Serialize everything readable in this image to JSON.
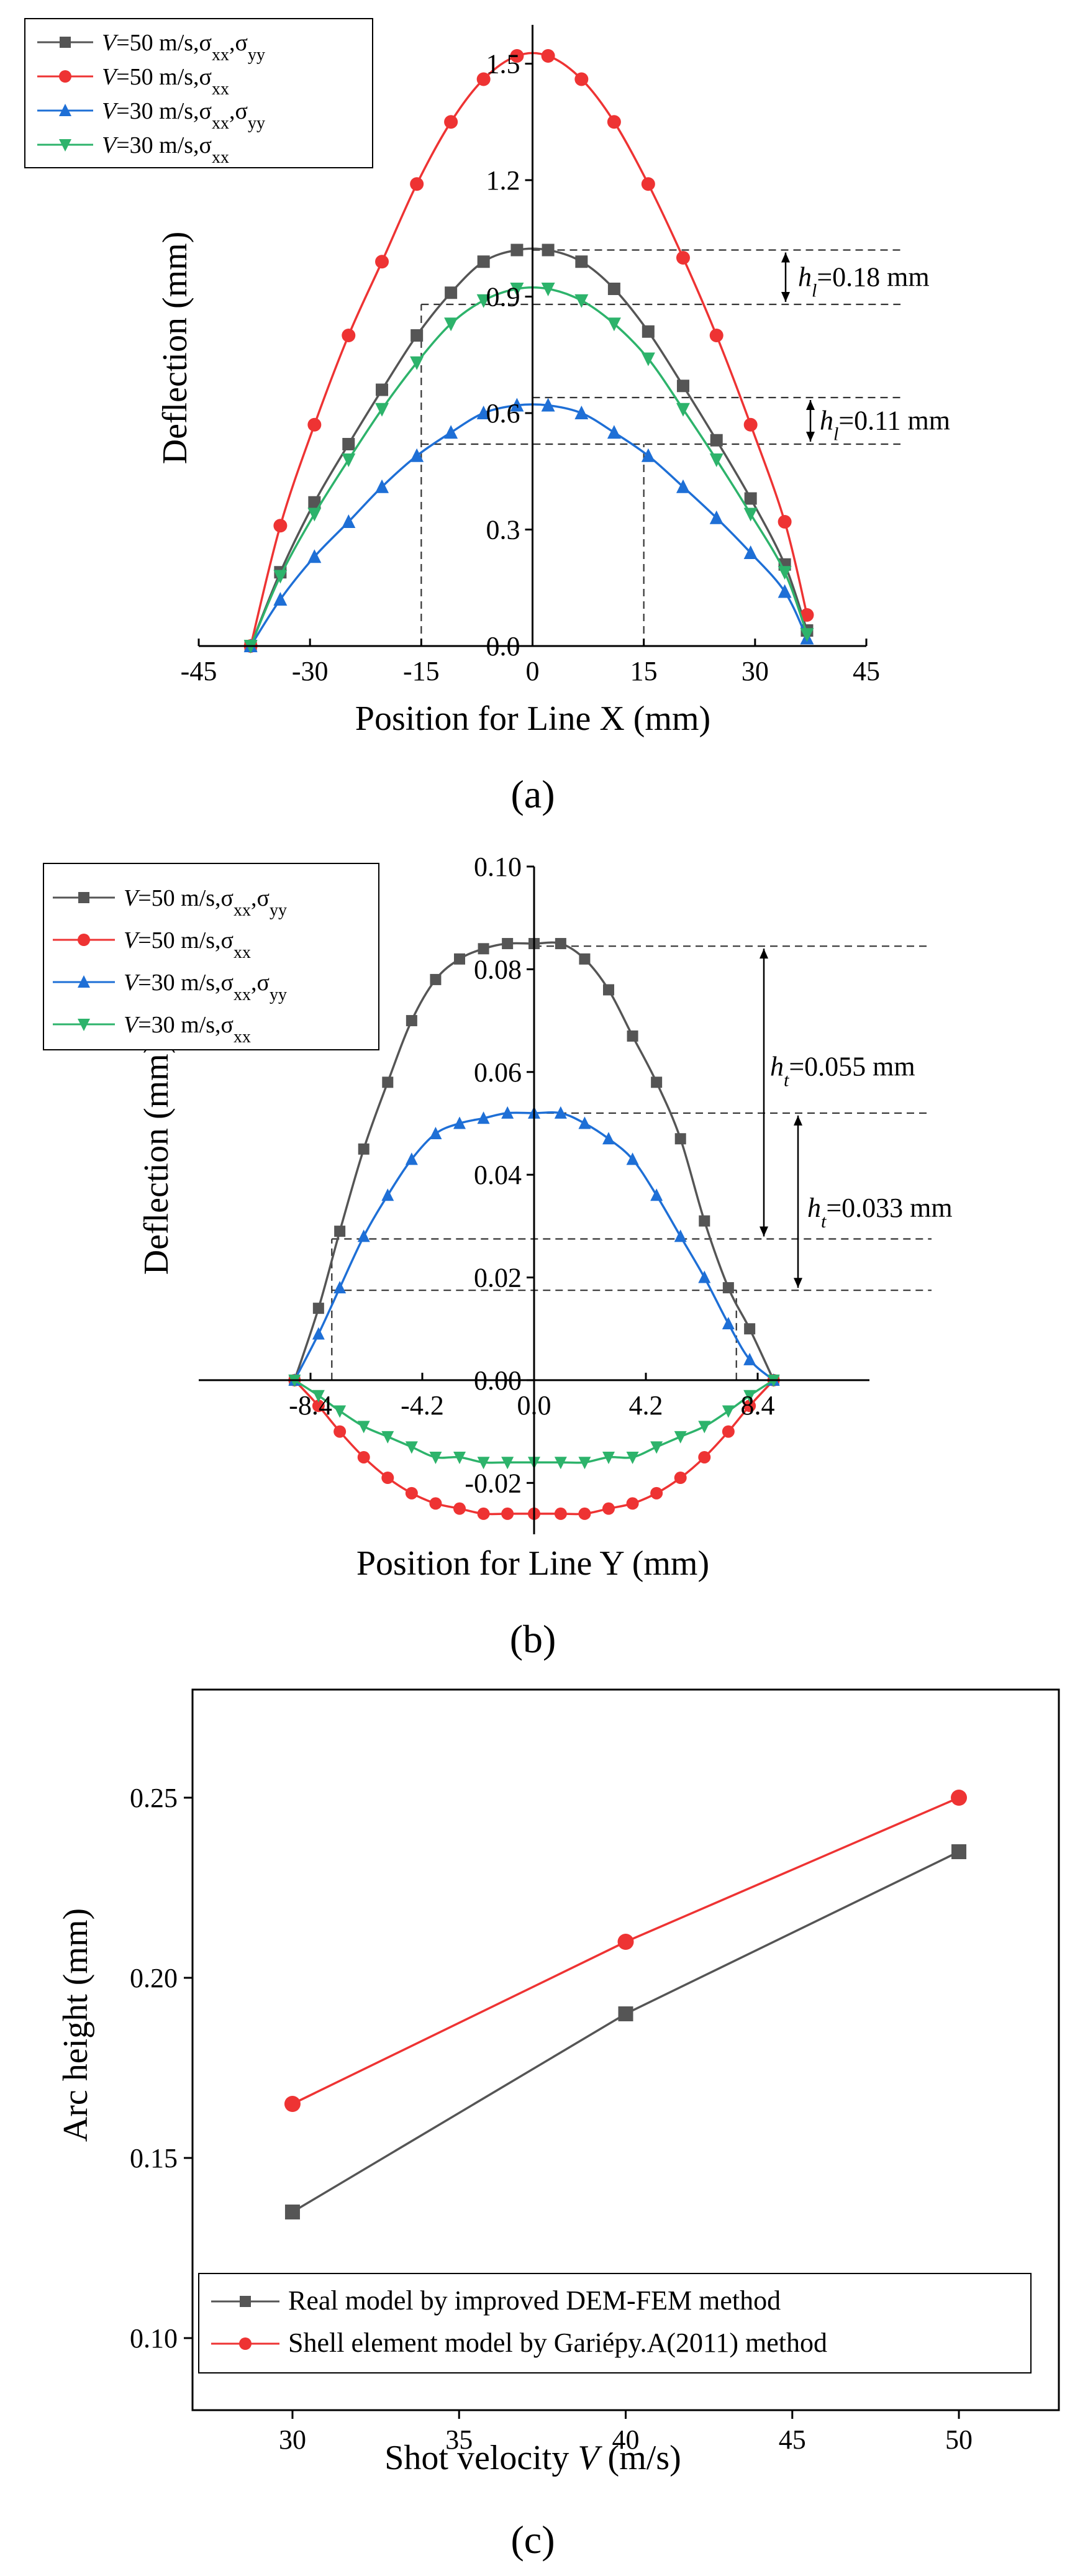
{
  "figure": {
    "panels": [
      "(a)",
      "(b)",
      "(c)"
    ]
  },
  "chart_data": [
    {
      "id": "a",
      "type": "line",
      "panel_label": "(a)",
      "xlabel": "Position for Line X (mm)",
      "ylabel": "Deflection (mm)",
      "xlim": [
        -45,
        45
      ],
      "ylim": [
        0,
        1.6
      ],
      "xticks": [
        "-45",
        "-30",
        "-15",
        "0",
        "15",
        "30",
        "45"
      ],
      "xtick_values": [
        -45,
        -30,
        -15,
        0,
        15,
        30,
        45
      ],
      "yticks": [
        "0.0",
        "0.3",
        "0.6",
        "0.9",
        "1.2",
        "1.5"
      ],
      "ytick_values": [
        0,
        0.3,
        0.6,
        0.9,
        1.2,
        1.5
      ],
      "x": [
        -38,
        -34,
        -29.4,
        -24.8,
        -20.3,
        -15.6,
        -11,
        -6.6,
        -2.1,
        2.1,
        6.6,
        11,
        15.6,
        20.3,
        24.8,
        29.4,
        34,
        37
      ],
      "series": [
        {
          "name_prefix": "V",
          "name_main": "=50 m/s,σ",
          "name_sub1": "xx",
          "name_sep": ",σ",
          "name_sub2": "yy",
          "color": "#555555",
          "marker": "square",
          "values": [
            0,
            0.19,
            0.37,
            0.52,
            0.66,
            0.8,
            0.91,
            0.99,
            1.02,
            1.02,
            0.99,
            0.92,
            0.81,
            0.67,
            0.53,
            0.38,
            0.21,
            0.04
          ]
        },
        {
          "name_prefix": "V",
          "name_main": "=50 m/s,σ",
          "name_sub1": "xx",
          "name_sep": "",
          "name_sub2": "",
          "color": "#ee3333",
          "marker": "circle",
          "values": [
            0,
            0.31,
            0.57,
            0.8,
            0.99,
            1.19,
            1.35,
            1.46,
            1.52,
            1.52,
            1.46,
            1.35,
            1.19,
            1.0,
            0.8,
            0.57,
            0.32,
            0.08
          ]
        },
        {
          "name_prefix": "V",
          "name_main": "=30 m/s,σ",
          "name_sub1": "xx",
          "name_sep": ",σ",
          "name_sub2": "yy",
          "color": "#1e6fd6",
          "marker": "triangle-up",
          "values": [
            0,
            0.12,
            0.23,
            0.32,
            0.41,
            0.49,
            0.55,
            0.6,
            0.62,
            0.62,
            0.6,
            0.55,
            0.49,
            0.41,
            0.33,
            0.24,
            0.14,
            0.02
          ]
        },
        {
          "name_prefix": "V",
          "name_main": "=30 m/s,σ",
          "name_sub1": "xx",
          "name_sep": "",
          "name_sub2": "",
          "color": "#2db36b",
          "marker": "triangle-down",
          "values": [
            0,
            0.18,
            0.34,
            0.48,
            0.61,
            0.73,
            0.83,
            0.89,
            0.92,
            0.92,
            0.89,
            0.83,
            0.74,
            0.61,
            0.48,
            0.34,
            0.19,
            0.03
          ]
        }
      ],
      "annotations": [
        {
          "h": "h",
          "sub": "l",
          "text": "=0.18 mm"
        },
        {
          "h": "h",
          "sub": "l",
          "text": "=0.11 mm"
        }
      ]
    },
    {
      "id": "b",
      "type": "line",
      "panel_label": "(b)",
      "xlabel": "Position for Line Y (mm)",
      "ylabel": "Deflection (mm)",
      "xlim": [
        -12.6,
        12.6
      ],
      "ylim": [
        -0.03,
        0.1
      ],
      "xticks": [
        "-8.4",
        "-4.2",
        "0.0",
        "4.2",
        "8.4"
      ],
      "xtick_values": [
        -8.4,
        -4.2,
        0,
        4.2,
        8.4
      ],
      "yticks": [
        "-0.02",
        "0.00",
        "0.02",
        "0.04",
        "0.06",
        "0.08",
        "0.10"
      ],
      "ytick_values": [
        -0.02,
        0,
        0.02,
        0.04,
        0.06,
        0.08,
        0.1
      ],
      "x": [
        -9,
        -8.1,
        -7.3,
        -6.4,
        -5.5,
        -4.6,
        -3.7,
        -2.8,
        -1.9,
        -1,
        0,
        1,
        1.9,
        2.8,
        3.7,
        4.6,
        5.5,
        6.4,
        7.3,
        8.1,
        9
      ],
      "series": [
        {
          "name_prefix": "V",
          "name_main": "=50 m/s,σ",
          "name_sub1": "xx",
          "name_sep": ",σ",
          "name_sub2": "yy",
          "color": "#555555",
          "marker": "square",
          "values": [
            0,
            0.014,
            0.029,
            0.045,
            0.058,
            0.07,
            0.078,
            0.082,
            0.084,
            0.085,
            0.085,
            0.085,
            0.082,
            0.076,
            0.067,
            0.058,
            0.047,
            0.031,
            0.018,
            0.01,
            0
          ]
        },
        {
          "name_prefix": "V",
          "name_main": "=50 m/s,σ",
          "name_sub1": "xx",
          "name_sep": "",
          "name_sub2": "",
          "color": "#ee3333",
          "marker": "circle",
          "values": [
            0,
            -0.005,
            -0.01,
            -0.015,
            -0.019,
            -0.022,
            -0.024,
            -0.025,
            -0.026,
            -0.026,
            -0.026,
            -0.026,
            -0.026,
            -0.025,
            -0.024,
            -0.022,
            -0.019,
            -0.015,
            -0.01,
            -0.005,
            0
          ]
        },
        {
          "name_prefix": "V",
          "name_main": "=30 m/s,σ",
          "name_sub1": "xx",
          "name_sep": ",σ",
          "name_sub2": "yy",
          "color": "#1e6fd6",
          "marker": "triangle-up",
          "values": [
            0,
            0.009,
            0.018,
            0.028,
            0.036,
            0.043,
            0.048,
            0.05,
            0.051,
            0.052,
            0.052,
            0.052,
            0.05,
            0.047,
            0.043,
            0.036,
            0.028,
            0.02,
            0.011,
            0.004,
            0
          ]
        },
        {
          "name_prefix": "V",
          "name_main": "=30 m/s,σ",
          "name_sub1": "xx",
          "name_sep": "",
          "name_sub2": "",
          "color": "#2db36b",
          "marker": "triangle-down",
          "values": [
            0,
            -0.003,
            -0.006,
            -0.009,
            -0.011,
            -0.013,
            -0.015,
            -0.015,
            -0.016,
            -0.016,
            -0.016,
            -0.016,
            -0.016,
            -0.015,
            -0.015,
            -0.013,
            -0.011,
            -0.009,
            -0.006,
            -0.003,
            0
          ]
        }
      ],
      "annotations": [
        {
          "h": "h",
          "sub": "t",
          "text": "=0.055 mm"
        },
        {
          "h": "h",
          "sub": "t",
          "text": "=0.033 mm"
        }
      ]
    },
    {
      "id": "c",
      "type": "line",
      "panel_label": "(c)",
      "xlabel_prefix": "Shot velocity ",
      "xlabel_var": "V",
      "xlabel_suffix": " (m/s)",
      "ylabel": "Arc height (mm)",
      "xlim": [
        27,
        53
      ],
      "ylim": [
        0.08,
        0.28
      ],
      "xticks": [
        "30",
        "35",
        "40",
        "45",
        "50"
      ],
      "xtick_values": [
        30,
        35,
        40,
        45,
        50
      ],
      "yticks": [
        "0.10",
        "0.15",
        "0.20",
        "0.25"
      ],
      "ytick_values": [
        0.1,
        0.15,
        0.2,
        0.25
      ],
      "x": [
        30,
        40,
        50
      ],
      "series": [
        {
          "name": "Real model by improved DEM-FEM method",
          "color": "#555555",
          "marker": "square",
          "values": [
            0.135,
            0.19,
            0.235
          ]
        },
        {
          "name": "Shell element model by Gariépy.A(2011) method",
          "color": "#ee3333",
          "marker": "circle",
          "values": [
            0.165,
            0.21,
            0.25
          ]
        }
      ]
    }
  ]
}
